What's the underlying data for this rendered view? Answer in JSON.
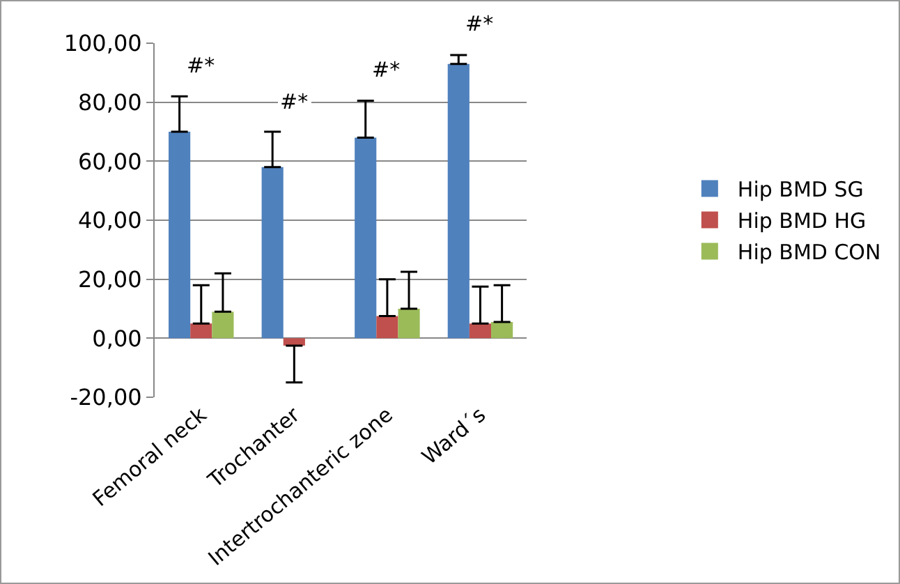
{
  "chart_data": {
    "type": "bar",
    "categories": [
      "Femoral neck",
      "Trochanter",
      "Intertrochanteric zone",
      "Ward´s"
    ],
    "series": [
      {
        "name": "Hip BMD SG",
        "color": "#4f81bd",
        "values": [
          70,
          58,
          68,
          93
        ],
        "errors": [
          [
            70,
            82
          ],
          [
            58,
            70
          ],
          [
            68,
            80.5
          ],
          [
            93,
            96
          ]
        ]
      },
      {
        "name": "Hip BMD HG",
        "color": "#c0504d",
        "values": [
          5,
          -2.5,
          7.5,
          5
        ],
        "errors": [
          [
            5,
            18
          ],
          [
            -15,
            -2.5
          ],
          [
            7.5,
            20
          ],
          [
            5,
            17.5
          ]
        ]
      },
      {
        "name": "Hip BMD CON",
        "color": "#9bbb59",
        "values": [
          9,
          null,
          10,
          5.5
        ],
        "errors": [
          [
            9,
            22
          ],
          null,
          [
            10,
            22.5
          ],
          [
            5.5,
            18
          ]
        ]
      }
    ],
    "ylim": [
      -20,
      100
    ],
    "yticks": [
      {
        "value": -20,
        "label": "-20,00"
      },
      {
        "value": 0,
        "label": "0,00"
      },
      {
        "value": 20,
        "label": "20,00"
      },
      {
        "value": 40,
        "label": "40,00"
      },
      {
        "value": 60,
        "label": "60,00"
      },
      {
        "value": 80,
        "label": "80,00"
      },
      {
        "value": 100,
        "label": "100,00"
      }
    ],
    "grid": "y",
    "legend": "right",
    "annotations": [
      "#*",
      "#*",
      "#*",
      "#*"
    ]
  }
}
